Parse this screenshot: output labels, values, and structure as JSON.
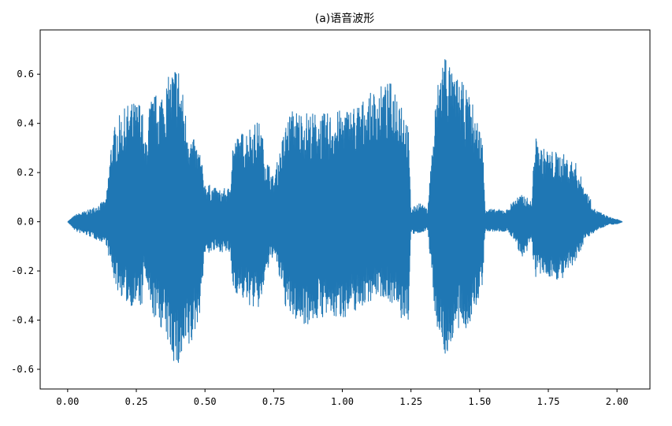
{
  "chart_data": {
    "type": "line",
    "title": "(a)语音波形",
    "xlabel": "",
    "ylabel": "",
    "xlim": [
      -0.1,
      2.12
    ],
    "ylim": [
      -0.68,
      0.78
    ],
    "xticks": [
      0.0,
      0.25,
      0.5,
      0.75,
      1.0,
      1.25,
      1.5,
      1.75,
      2.0
    ],
    "xtick_labels": [
      "0.00",
      "0.25",
      "0.50",
      "0.75",
      "1.00",
      "1.25",
      "1.50",
      "1.75",
      "2.00"
    ],
    "yticks": [
      -0.6,
      -0.4,
      -0.2,
      0.0,
      0.2,
      0.4,
      0.6
    ],
    "ytick_labels": [
      "-0.6",
      "-0.4",
      "-0.2",
      "0.0",
      "0.2",
      "0.4",
      "0.6"
    ],
    "grid": false,
    "series": [
      {
        "color": "#1f77b4",
        "envelope_upper": {
          "x": [
            0.0,
            0.03,
            0.08,
            0.14,
            0.16,
            0.18,
            0.22,
            0.27,
            0.28,
            0.3,
            0.35,
            0.38,
            0.4,
            0.43,
            0.45,
            0.48,
            0.5,
            0.55,
            0.59,
            0.6,
            0.62,
            0.67,
            0.7,
            0.72,
            0.75,
            0.8,
            0.82,
            0.87,
            0.93,
            0.98,
            1.03,
            1.08,
            1.13,
            1.18,
            1.21,
            1.24,
            1.25,
            1.28,
            1.31,
            1.34,
            1.36,
            1.38,
            1.4,
            1.43,
            1.47,
            1.51,
            1.52,
            1.55,
            1.6,
            1.63,
            1.66,
            1.69,
            1.7,
            1.73,
            1.8,
            1.85,
            1.88,
            1.92,
            1.97,
            2.0,
            2.02
          ],
          "y": [
            0.0,
            0.03,
            0.05,
            0.09,
            0.35,
            0.42,
            0.48,
            0.5,
            0.3,
            0.5,
            0.55,
            0.62,
            0.67,
            0.45,
            0.35,
            0.3,
            0.16,
            0.13,
            0.14,
            0.33,
            0.35,
            0.4,
            0.41,
            0.28,
            0.18,
            0.43,
            0.46,
            0.45,
            0.44,
            0.45,
            0.47,
            0.5,
            0.55,
            0.57,
            0.55,
            0.39,
            0.05,
            0.08,
            0.05,
            0.5,
            0.68,
            0.72,
            0.6,
            0.58,
            0.5,
            0.35,
            0.06,
            0.05,
            0.05,
            0.1,
            0.11,
            0.08,
            0.35,
            0.3,
            0.28,
            0.24,
            0.15,
            0.05,
            0.02,
            0.01,
            0.0
          ]
        },
        "envelope_lower": {
          "x": [
            0.0,
            0.03,
            0.08,
            0.14,
            0.16,
            0.18,
            0.22,
            0.27,
            0.28,
            0.3,
            0.35,
            0.38,
            0.4,
            0.43,
            0.45,
            0.48,
            0.5,
            0.55,
            0.59,
            0.6,
            0.62,
            0.67,
            0.7,
            0.72,
            0.75,
            0.8,
            0.82,
            0.87,
            0.93,
            0.98,
            1.03,
            1.08,
            1.13,
            1.18,
            1.21,
            1.24,
            1.25,
            1.28,
            1.31,
            1.34,
            1.36,
            1.38,
            1.4,
            1.43,
            1.47,
            1.51,
            1.52,
            1.55,
            1.6,
            1.63,
            1.66,
            1.69,
            1.7,
            1.73,
            1.8,
            1.85,
            1.88,
            1.92,
            1.97,
            2.0,
            2.02
          ],
          "y": [
            0.0,
            -0.04,
            -0.06,
            -0.09,
            -0.2,
            -0.28,
            -0.34,
            -0.35,
            -0.2,
            -0.37,
            -0.45,
            -0.55,
            -0.62,
            -0.55,
            -0.52,
            -0.38,
            -0.13,
            -0.12,
            -0.13,
            -0.27,
            -0.3,
            -0.35,
            -0.36,
            -0.23,
            -0.13,
            -0.38,
            -0.4,
            -0.42,
            -0.39,
            -0.4,
            -0.38,
            -0.34,
            -0.3,
            -0.33,
            -0.4,
            -0.42,
            -0.05,
            -0.05,
            -0.03,
            -0.4,
            -0.5,
            -0.57,
            -0.48,
            -0.45,
            -0.42,
            -0.26,
            -0.04,
            -0.04,
            -0.04,
            -0.08,
            -0.17,
            -0.07,
            -0.23,
            -0.22,
            -0.24,
            -0.17,
            -0.08,
            -0.04,
            -0.01,
            -0.01,
            0.0
          ]
        }
      }
    ]
  }
}
